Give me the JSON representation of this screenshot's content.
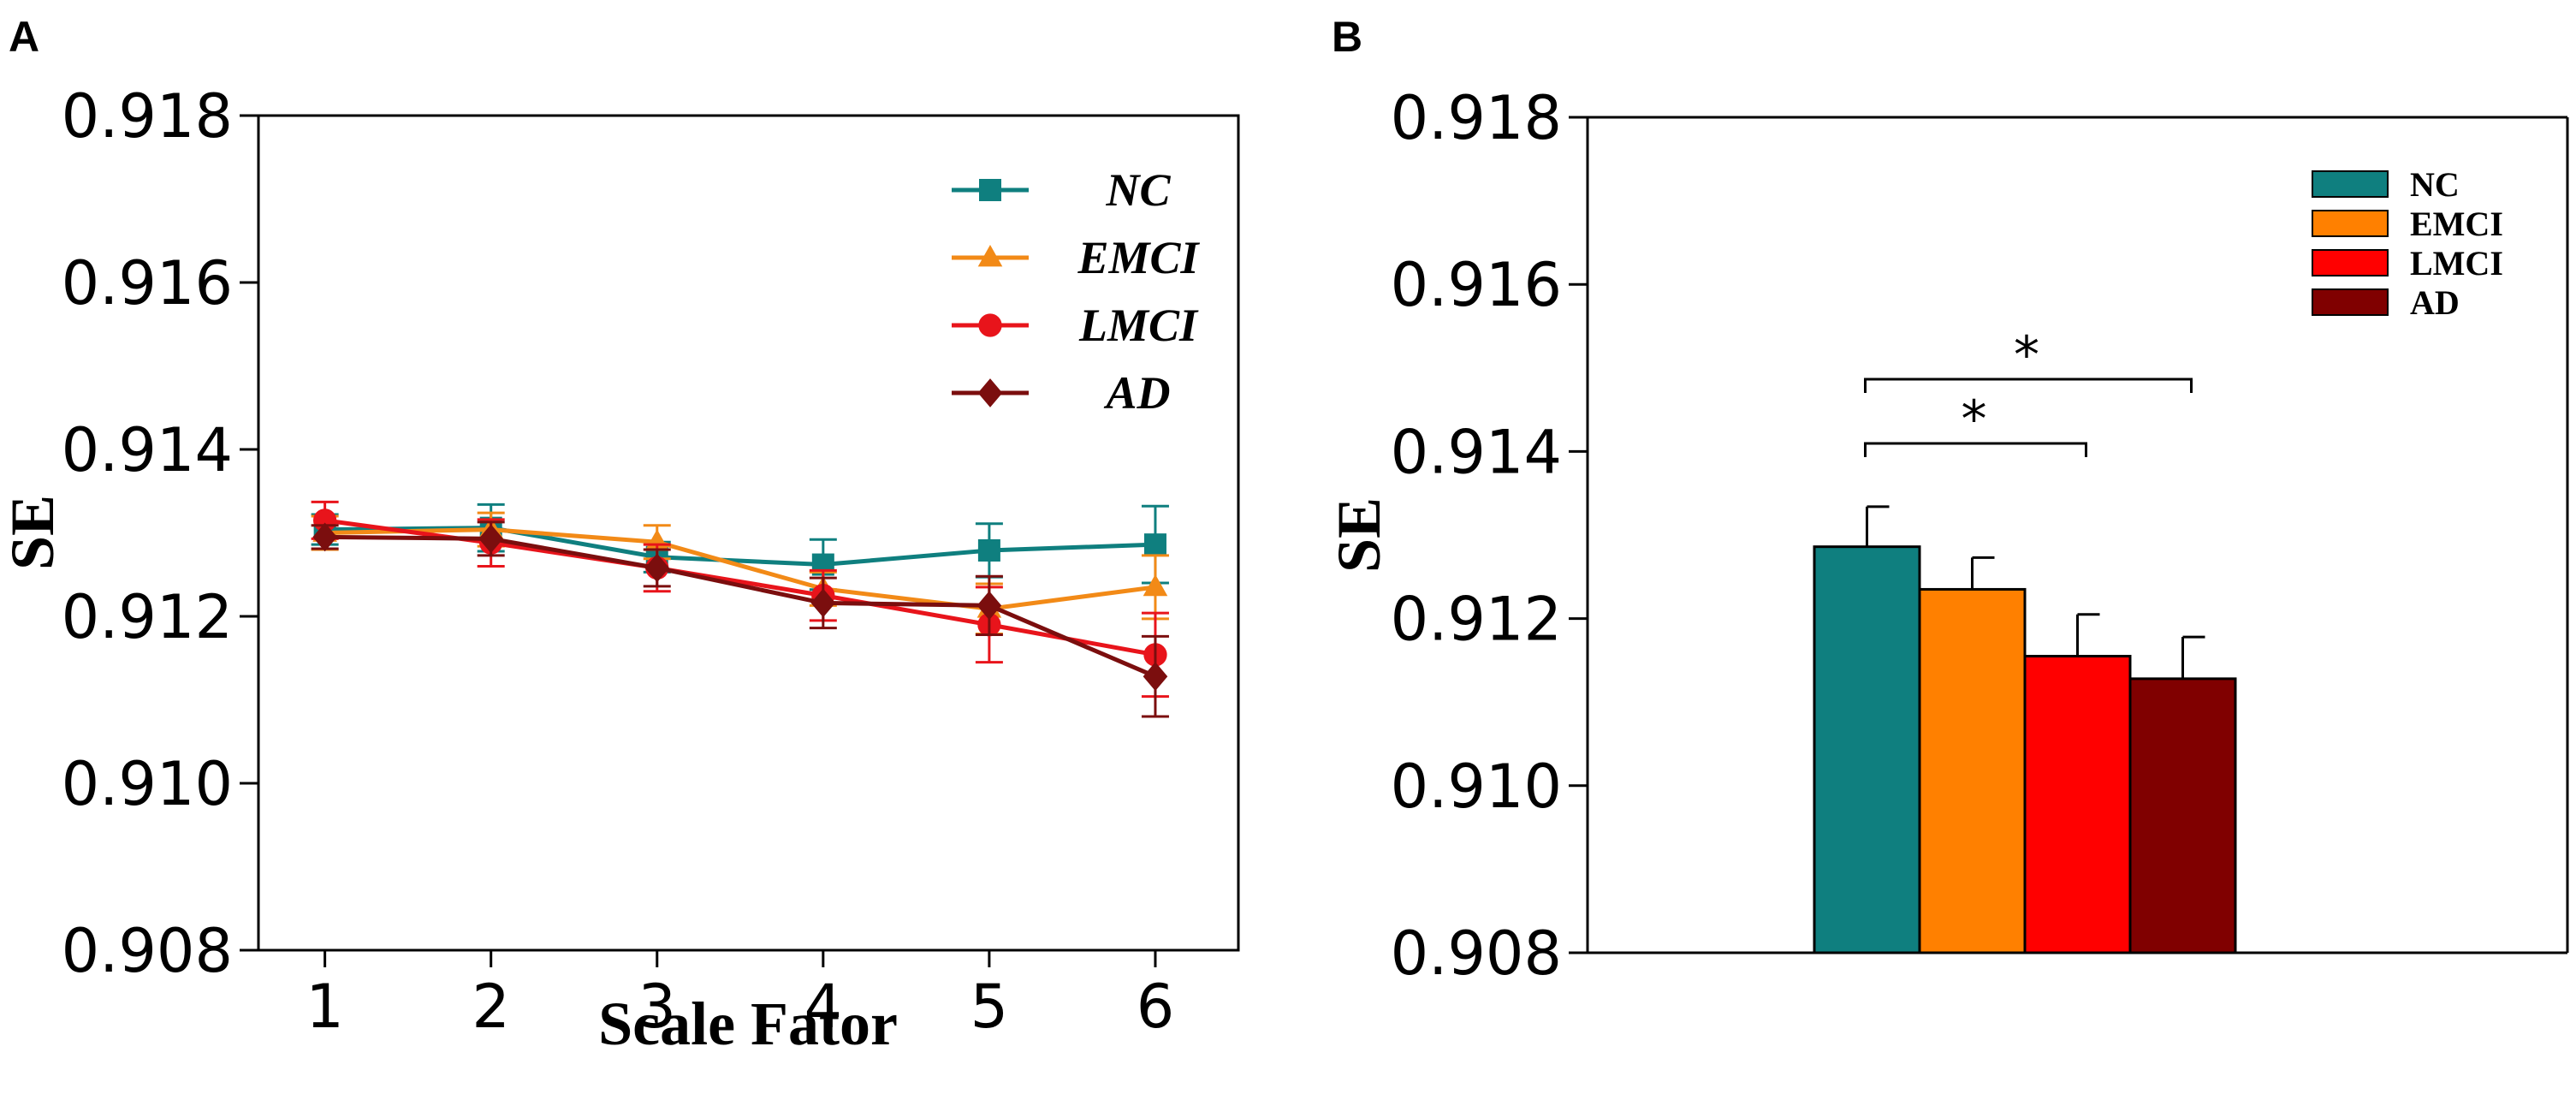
{
  "chart_data": [
    {
      "panel": "A",
      "type": "line",
      "xlabel": "Scale Fator",
      "ylabel": "SE",
      "x": [
        1,
        2,
        3,
        4,
        5,
        6
      ],
      "xlim": [
        0.6,
        6.5
      ],
      "ylim": [
        0.908,
        0.918
      ],
      "yticks": [
        "0.908",
        "0.910",
        "0.912",
        "0.914",
        "0.916",
        "0.918"
      ],
      "legend_position": "top-right",
      "series": [
        {
          "name": "NC",
          "marker": "square",
          "color": "#0f7f7f",
          "values": [
            0.91304,
            0.91306,
            0.91271,
            0.91262,
            0.91279,
            0.91286
          ],
          "errors": [
            0.00018,
            0.00028,
            0.00018,
            0.0003,
            0.00032,
            0.00046
          ]
        },
        {
          "name": "EMCI",
          "marker": "triangle",
          "color": "#f28a17",
          "values": [
            0.913,
            0.91304,
            0.91289,
            0.91233,
            0.91209,
            0.91235
          ],
          "errors": [
            0.0002,
            0.0002,
            0.0002,
            0.0002,
            0.0003,
            0.00038
          ]
        },
        {
          "name": "LMCI",
          "marker": "circle",
          "color": "#e8141b",
          "values": [
            0.91315,
            0.91288,
            0.91258,
            0.91225,
            0.9119,
            0.91154
          ],
          "errors": [
            0.00022,
            0.00028,
            0.00028,
            0.0003,
            0.00045,
            0.0005
          ]
        },
        {
          "name": "AD",
          "marker": "diamond",
          "color": "#7b0e0e",
          "values": [
            0.91295,
            0.91293,
            0.91258,
            0.91216,
            0.91213,
            0.91128
          ],
          "errors": [
            0.00014,
            0.0002,
            0.00022,
            0.0003,
            0.00035,
            0.00048
          ]
        }
      ]
    },
    {
      "panel": "B",
      "type": "bar",
      "xlabel": "",
      "ylabel": "SE",
      "categories": [
        "NC",
        "EMCI",
        "LMCI",
        "AD"
      ],
      "values": [
        0.91286,
        0.91235,
        0.91155,
        0.91128
      ],
      "errors": [
        0.00048,
        0.00038,
        0.0005,
        0.0005
      ],
      "colors": [
        "#0f7f7f",
        "#ff8000",
        "#ff0000",
        "#800000"
      ],
      "ylim": [
        0.908,
        0.918
      ],
      "yticks": [
        "0.908",
        "0.910",
        "0.912",
        "0.914",
        "0.916",
        "0.918"
      ],
      "legend_position": "top-right",
      "significance": [
        {
          "from": "NC",
          "to": "LMCI",
          "label": "*"
        },
        {
          "from": "NC",
          "to": "AD",
          "label": "*"
        }
      ]
    }
  ]
}
